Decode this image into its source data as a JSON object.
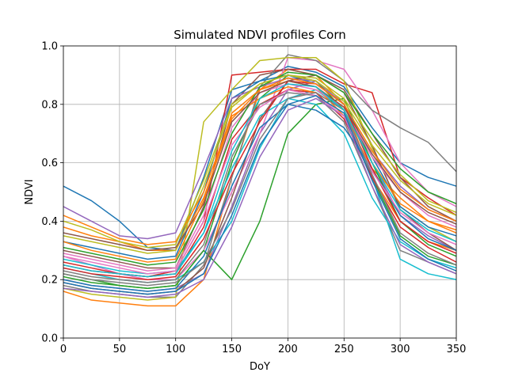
{
  "chart_data": {
    "type": "line",
    "title": "Simulated NDVI profiles Corn",
    "xlabel": "DoY",
    "ylabel": "NDVI",
    "xlim": [
      0,
      350
    ],
    "ylim": [
      0.0,
      1.0
    ],
    "grid": true,
    "x_ticks": [
      "0",
      "50",
      "100",
      "150",
      "200",
      "250",
      "300",
      "350"
    ],
    "y_ticks": [
      "0.0",
      "0.2",
      "0.4",
      "0.6",
      "0.8",
      "1.0"
    ],
    "x": [
      0,
      25,
      50,
      75,
      100,
      125,
      150,
      175,
      200,
      225,
      250,
      275,
      300,
      325,
      350
    ],
    "colors": [
      "#1f77b4",
      "#ff7f0e",
      "#2ca02c",
      "#d62728",
      "#9467bd",
      "#8c564b",
      "#e377c2",
      "#7f7f7f",
      "#bcbd22",
      "#17becf"
    ],
    "series": [
      {
        "values": [
          0.52,
          0.47,
          0.4,
          0.31,
          0.3,
          0.55,
          0.85,
          0.88,
          0.93,
          0.91,
          0.86,
          0.72,
          0.6,
          0.55,
          0.52
        ]
      },
      {
        "values": [
          0.16,
          0.13,
          0.12,
          0.11,
          0.11,
          0.2,
          0.55,
          0.85,
          0.92,
          0.9,
          0.8,
          0.55,
          0.4,
          0.33,
          0.3
        ]
      },
      {
        "values": [
          0.22,
          0.2,
          0.18,
          0.17,
          0.18,
          0.3,
          0.6,
          0.82,
          0.9,
          0.88,
          0.78,
          0.55,
          0.35,
          0.28,
          0.25
        ]
      },
      {
        "values": [
          0.25,
          0.23,
          0.22,
          0.21,
          0.23,
          0.4,
          0.9,
          0.91,
          0.92,
          0.92,
          0.87,
          0.84,
          0.55,
          0.48,
          0.42
        ]
      },
      {
        "values": [
          0.2,
          0.18,
          0.17,
          0.16,
          0.17,
          0.22,
          0.45,
          0.7,
          0.85,
          0.88,
          0.8,
          0.6,
          0.42,
          0.35,
          0.3
        ]
      },
      {
        "values": [
          0.3,
          0.28,
          0.26,
          0.24,
          0.24,
          0.45,
          0.8,
          0.9,
          0.92,
          0.9,
          0.85,
          0.7,
          0.55,
          0.45,
          0.4
        ]
      },
      {
        "values": [
          0.28,
          0.25,
          0.22,
          0.2,
          0.2,
          0.3,
          0.5,
          0.7,
          0.96,
          0.95,
          0.92,
          0.78,
          0.6,
          0.5,
          0.45
        ]
      },
      {
        "values": [
          0.18,
          0.16,
          0.15,
          0.14,
          0.14,
          0.25,
          0.55,
          0.86,
          0.97,
          0.95,
          0.88,
          0.78,
          0.72,
          0.67,
          0.57
        ]
      },
      {
        "values": [
          0.17,
          0.15,
          0.14,
          0.13,
          0.14,
          0.74,
          0.85,
          0.95,
          0.96,
          0.96,
          0.88,
          0.65,
          0.45,
          0.38,
          0.33
        ]
      },
      {
        "values": [
          0.24,
          0.22,
          0.2,
          0.19,
          0.2,
          0.26,
          0.4,
          0.65,
          0.82,
          0.85,
          0.78,
          0.55,
          0.27,
          0.22,
          0.2
        ]
      },
      {
        "values": [
          0.33,
          0.31,
          0.29,
          0.27,
          0.28,
          0.5,
          0.82,
          0.88,
          0.9,
          0.87,
          0.8,
          0.62,
          0.45,
          0.38,
          0.35
        ]
      },
      {
        "values": [
          0.38,
          0.35,
          0.33,
          0.3,
          0.3,
          0.48,
          0.75,
          0.85,
          0.88,
          0.86,
          0.76,
          0.58,
          0.48,
          0.4,
          0.36
        ]
      },
      {
        "values": [
          0.21,
          0.19,
          0.18,
          0.17,
          0.18,
          0.3,
          0.2,
          0.4,
          0.7,
          0.8,
          0.82,
          0.6,
          0.4,
          0.32,
          0.28
        ]
      },
      {
        "values": [
          0.26,
          0.24,
          0.22,
          0.21,
          0.22,
          0.38,
          0.68,
          0.8,
          0.85,
          0.84,
          0.75,
          0.55,
          0.38,
          0.31,
          0.26
        ]
      },
      {
        "values": [
          0.45,
          0.4,
          0.35,
          0.34,
          0.36,
          0.58,
          0.82,
          0.86,
          0.89,
          0.88,
          0.8,
          0.64,
          0.52,
          0.44,
          0.4
        ]
      },
      {
        "values": [
          0.19,
          0.17,
          0.16,
          0.15,
          0.16,
          0.24,
          0.48,
          0.75,
          0.88,
          0.9,
          0.84,
          0.66,
          0.44,
          0.36,
          0.3
        ]
      },
      {
        "values": [
          0.29,
          0.27,
          0.25,
          0.23,
          0.24,
          0.42,
          0.72,
          0.84,
          0.87,
          0.85,
          0.79,
          0.62,
          0.5,
          0.42,
          0.38
        ]
      },
      {
        "values": [
          0.23,
          0.21,
          0.2,
          0.19,
          0.2,
          0.32,
          0.62,
          0.8,
          0.84,
          0.83,
          0.74,
          0.52,
          0.3,
          0.26,
          0.22
        ]
      },
      {
        "values": [
          0.35,
          0.33,
          0.31,
          0.29,
          0.3,
          0.52,
          0.79,
          0.87,
          0.9,
          0.89,
          0.82,
          0.68,
          0.56,
          0.47,
          0.43
        ]
      },
      {
        "values": [
          0.27,
          0.25,
          0.23,
          0.22,
          0.23,
          0.36,
          0.58,
          0.76,
          0.82,
          0.8,
          0.7,
          0.48,
          0.33,
          0.27,
          0.24
        ]
      },
      {
        "values": [
          0.2,
          0.18,
          0.17,
          0.16,
          0.17,
          0.28,
          0.52,
          0.72,
          0.8,
          0.78,
          0.72,
          0.58,
          0.42,
          0.34,
          0.3
        ]
      },
      {
        "values": [
          0.42,
          0.38,
          0.34,
          0.32,
          0.33,
          0.5,
          0.76,
          0.82,
          0.86,
          0.84,
          0.78,
          0.6,
          0.46,
          0.4,
          0.37
        ]
      },
      {
        "values": [
          0.31,
          0.29,
          0.27,
          0.25,
          0.26,
          0.44,
          0.7,
          0.86,
          0.91,
          0.9,
          0.84,
          0.7,
          0.58,
          0.5,
          0.46
        ]
      },
      {
        "values": [
          0.24,
          0.22,
          0.21,
          0.2,
          0.21,
          0.34,
          0.56,
          0.74,
          0.88,
          0.87,
          0.8,
          0.58,
          0.4,
          0.33,
          0.29
        ]
      },
      {
        "values": [
          0.17,
          0.16,
          0.15,
          0.14,
          0.15,
          0.2,
          0.38,
          0.62,
          0.78,
          0.82,
          0.76,
          0.52,
          0.32,
          0.26,
          0.22
        ]
      },
      {
        "values": [
          0.36,
          0.34,
          0.32,
          0.3,
          0.31,
          0.46,
          0.74,
          0.84,
          0.88,
          0.86,
          0.79,
          0.63,
          0.5,
          0.43,
          0.39
        ]
      },
      {
        "values": [
          0.28,
          0.26,
          0.24,
          0.22,
          0.23,
          0.4,
          0.66,
          0.79,
          0.85,
          0.83,
          0.76,
          0.57,
          0.43,
          0.36,
          0.32
        ]
      },
      {
        "values": [
          0.22,
          0.2,
          0.19,
          0.18,
          0.19,
          0.26,
          0.44,
          0.68,
          0.82,
          0.84,
          0.78,
          0.56,
          0.36,
          0.29,
          0.25
        ]
      },
      {
        "values": [
          0.4,
          0.37,
          0.33,
          0.31,
          0.32,
          0.54,
          0.8,
          0.87,
          0.9,
          0.88,
          0.81,
          0.66,
          0.54,
          0.46,
          0.42
        ]
      },
      {
        "values": [
          0.25,
          0.23,
          0.22,
          0.21,
          0.22,
          0.36,
          0.64,
          0.82,
          0.87,
          0.86,
          0.78,
          0.6,
          0.44,
          0.37,
          0.33
        ]
      },
      {
        "values": [
          0.19,
          0.17,
          0.16,
          0.15,
          0.16,
          0.22,
          0.42,
          0.66,
          0.8,
          0.83,
          0.77,
          0.54,
          0.34,
          0.27,
          0.23
        ]
      },
      {
        "values": [
          0.33,
          0.3,
          0.28,
          0.26,
          0.27,
          0.47,
          0.77,
          0.85,
          0.89,
          0.87,
          0.8,
          0.64,
          0.51,
          0.44,
          0.4
        ]
      }
    ]
  }
}
